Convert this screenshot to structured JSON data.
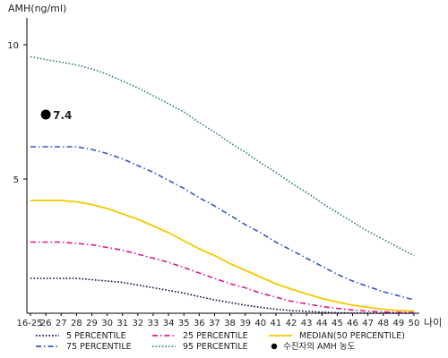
{
  "chart_data": {
    "type": "line",
    "ylabel": "AMH(ng/ml)",
    "xlabel": "나이",
    "categories": [
      "16-25",
      "26",
      "27",
      "28",
      "29",
      "30",
      "31",
      "32",
      "33",
      "34",
      "35",
      "36",
      "37",
      "38",
      "39",
      "40",
      "41",
      "42",
      "43",
      "44",
      "45",
      "46",
      "47",
      "48",
      "49",
      "50"
    ],
    "ylim": [
      0,
      11
    ],
    "yticks": [
      5,
      10
    ],
    "ytick_labels": [
      "5",
      "10"
    ],
    "series": [
      {
        "name": "95 PERCENTILE",
        "color": "#2e8b57",
        "style": "dotted",
        "values": [
          9.55,
          9.45,
          9.35,
          9.25,
          9.1,
          8.9,
          8.65,
          8.4,
          8.1,
          7.8,
          7.5,
          7.1,
          6.75,
          6.35,
          6.0,
          5.6,
          5.25,
          4.85,
          4.5,
          4.1,
          3.75,
          3.4,
          3.05,
          2.75,
          2.45,
          2.15
        ]
      },
      {
        "name": "75 PERCENTILE",
        "color": "#3355cc",
        "style": "dashdot",
        "values": [
          6.2,
          6.2,
          6.2,
          6.2,
          6.1,
          5.95,
          5.75,
          5.5,
          5.25,
          4.95,
          4.65,
          4.3,
          4.0,
          3.65,
          3.3,
          3.0,
          2.65,
          2.35,
          2.05,
          1.75,
          1.45,
          1.2,
          1.0,
          0.8,
          0.65,
          0.5
        ]
      },
      {
        "name": "MEDIAN(50 PERCENTILE)",
        "color": "#f5c800",
        "style": "solid",
        "values": [
          4.2,
          4.2,
          4.2,
          4.15,
          4.05,
          3.9,
          3.7,
          3.5,
          3.25,
          3.0,
          2.7,
          2.4,
          2.15,
          1.85,
          1.6,
          1.35,
          1.1,
          0.9,
          0.72,
          0.55,
          0.42,
          0.3,
          0.22,
          0.15,
          0.1,
          0.08
        ]
      },
      {
        "name": "25 PERCENTILE",
        "color": "#e0158a",
        "style": "dashdot",
        "values": [
          2.65,
          2.65,
          2.65,
          2.6,
          2.55,
          2.45,
          2.35,
          2.2,
          2.05,
          1.9,
          1.7,
          1.5,
          1.3,
          1.1,
          0.95,
          0.75,
          0.6,
          0.45,
          0.35,
          0.25,
          0.18,
          0.12,
          0.08,
          0.05,
          0.03,
          0.02
        ]
      },
      {
        "name": "5 PERCENTILE",
        "color": "#0a0a50",
        "style": "dotted",
        "values": [
          1.3,
          1.3,
          1.3,
          1.3,
          1.25,
          1.2,
          1.15,
          1.05,
          0.95,
          0.85,
          0.75,
          0.62,
          0.5,
          0.4,
          0.3,
          0.22,
          0.15,
          0.1,
          0.07,
          0.04,
          0.02,
          0.01,
          0.0,
          0.0,
          0.0,
          0.0
        ]
      }
    ],
    "marker": {
      "name": "수진자의 AMH 농도",
      "category": "26",
      "value": 7.4,
      "label": "7.4",
      "color": "#000000"
    },
    "legend": {
      "position": "bottom",
      "items": [
        {
          "label": "5 PERCENTILE",
          "color": "#0a0a50",
          "style": "dotted"
        },
        {
          "label": "25 PERCENTILE",
          "color": "#e0158a",
          "style": "dashdot"
        },
        {
          "label": "MEDIAN(50 PERCENTILE)",
          "color": "#f5c800",
          "style": "solid"
        },
        {
          "label": "75 PERCENTILE",
          "color": "#3355cc",
          "style": "dashdot"
        },
        {
          "label": "95 PERCENTILE",
          "color": "#2e8b57",
          "style": "dotted"
        },
        {
          "label": "수진자의 AMH 농도",
          "color": "#000000",
          "style": "marker"
        }
      ]
    },
    "grid": false
  }
}
